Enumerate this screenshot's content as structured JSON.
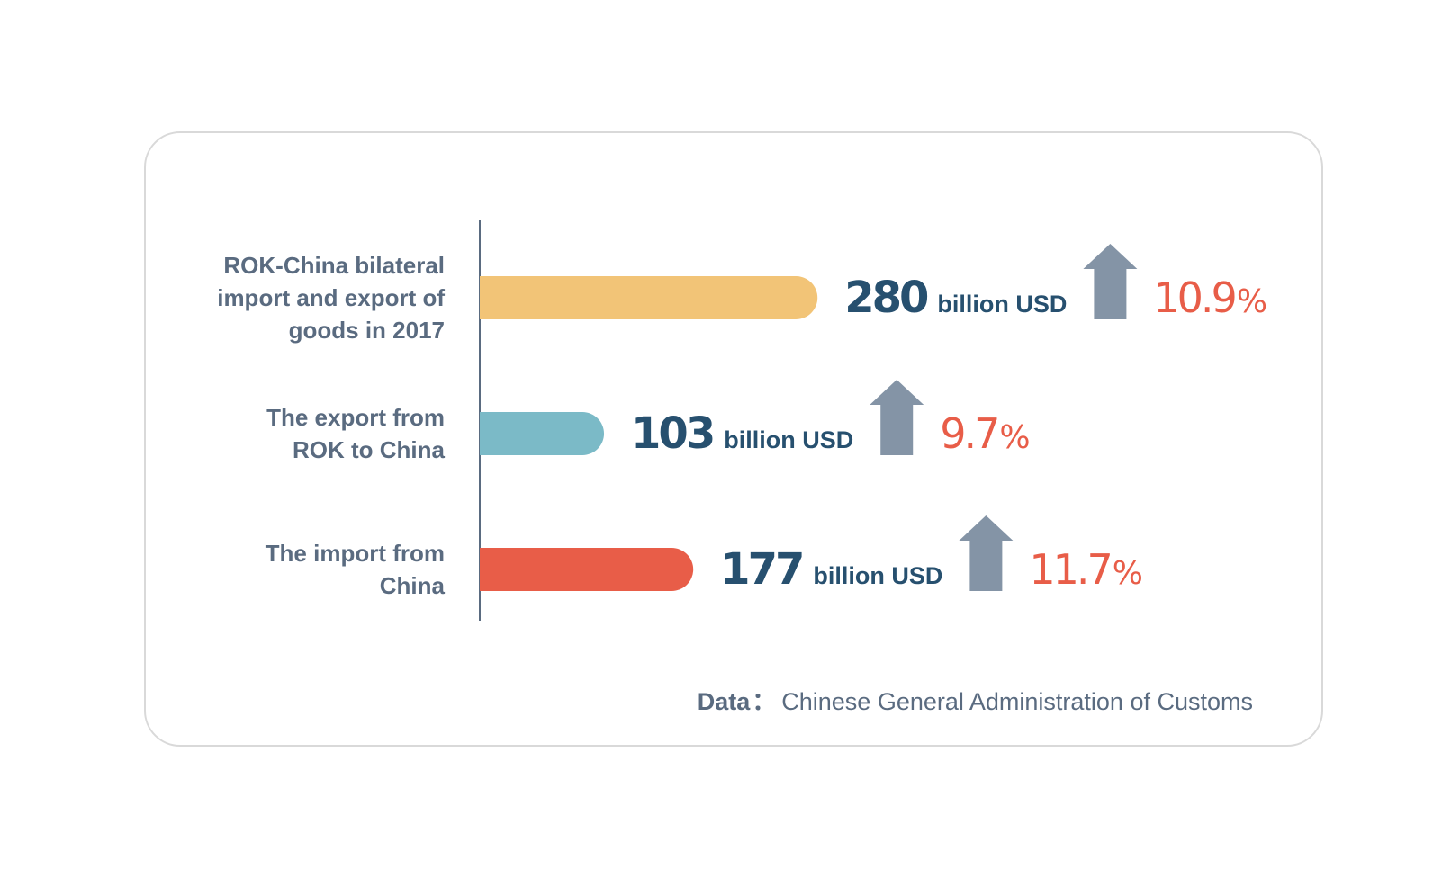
{
  "chart_data": {
    "type": "bar",
    "orientation": "horizontal",
    "unit": "billion USD",
    "categories": [
      {
        "label_lines": [
          "ROK-China bilateral",
          "import and export of",
          "goods in 2017"
        ],
        "value": 280,
        "value_text": "280",
        "growth": 10.9,
        "growth_text": "10.9",
        "growth_suffix": "%",
        "color": "#f2c477"
      },
      {
        "label_lines": [
          "The export from",
          "ROK to China"
        ],
        "value": 103,
        "value_text": "103",
        "growth": 9.7,
        "growth_text": "9.7",
        "growth_suffix": "%",
        "color": "#7bbac7"
      },
      {
        "label_lines": [
          "The import from",
          "China"
        ],
        "value": 177,
        "value_text": "177",
        "growth": 11.7,
        "growth_text": "11.7",
        "growth_suffix": "%",
        "color": "#e85d48"
      }
    ],
    "growth_indicator": "up-arrow-icon",
    "arrow_color": "#8494a6",
    "value_color": "#27506f",
    "growth_color": "#e85d48",
    "label_color": "#5a6b80"
  },
  "source": {
    "key": "Data",
    "separator": "：",
    "value": "Chinese General Administration of Customs"
  }
}
